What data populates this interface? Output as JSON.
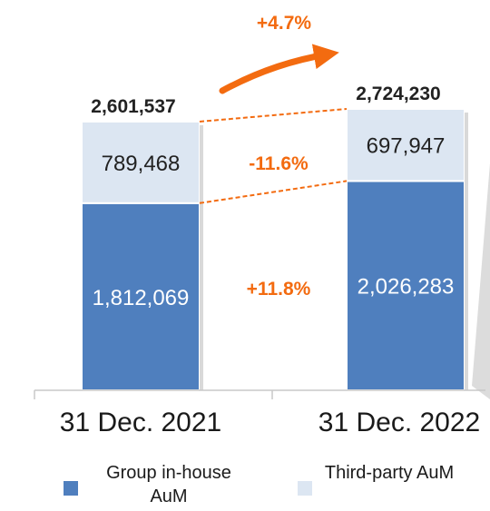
{
  "chart_data": {
    "type": "bar",
    "stacked": true,
    "categories": [
      "31 Dec. 2021",
      "31 Dec. 2022"
    ],
    "series": [
      {
        "name": "Group in-house AuM",
        "values": [
          1812069,
          2026283
        ],
        "color": "#4f7fbe"
      },
      {
        "name": "Third-party AuM",
        "values": [
          789468,
          697947
        ],
        "color": "#dce6f2"
      }
    ],
    "totals": [
      2601537,
      2724230
    ],
    "growth": {
      "total": "+4.7%",
      "third_party": "-11.6%",
      "in_house": "+11.8%"
    },
    "accent_color": "#f36b10",
    "legend_position": "bottom",
    "grid": false
  },
  "legend": {
    "in_house_label": "Group in-house AuM",
    "third_party_label": "Third-party AuM"
  }
}
